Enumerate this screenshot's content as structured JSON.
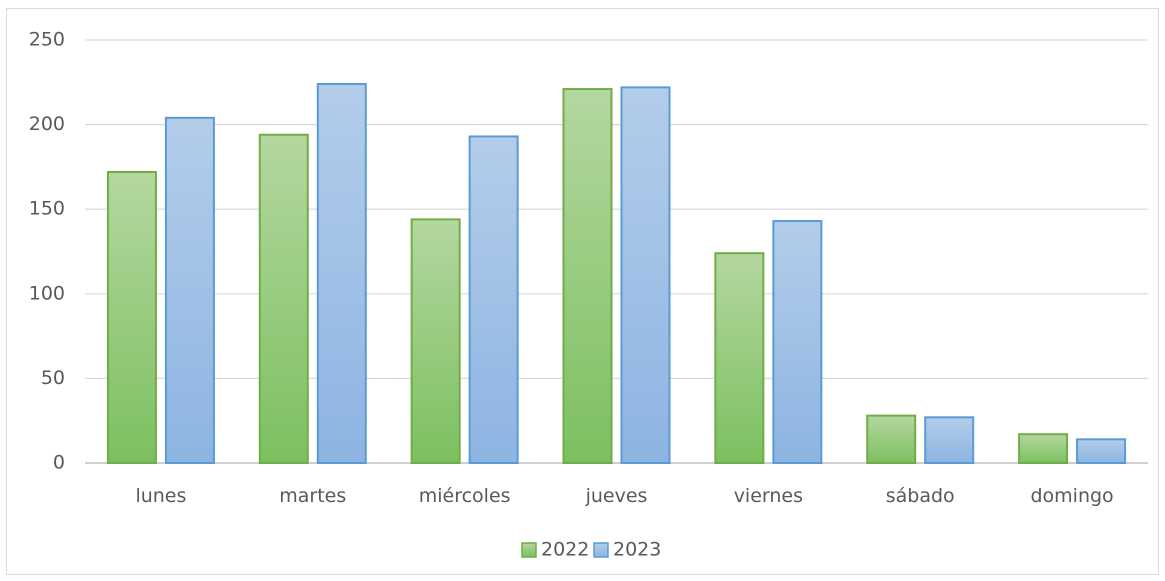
{
  "chart_data": {
    "type": "bar",
    "categories": [
      "lunes",
      "martes",
      "miércoles",
      "jueves",
      "viernes",
      "sábado",
      "domingo"
    ],
    "series": [
      {
        "name": "2022",
        "values": [
          172,
          194,
          144,
          221,
          124,
          28,
          17
        ],
        "color": "#70ad47"
      },
      {
        "name": "2023",
        "values": [
          204,
          224,
          193,
          222,
          143,
          27,
          14
        ],
        "color": "#5b9bd5"
      }
    ],
    "yticks": [
      0,
      50,
      100,
      150,
      200,
      250
    ],
    "ylim": [
      0,
      250
    ],
    "grid": true,
    "legend": "bottom-center",
    "title": "",
    "xlabel": "",
    "ylabel": ""
  }
}
